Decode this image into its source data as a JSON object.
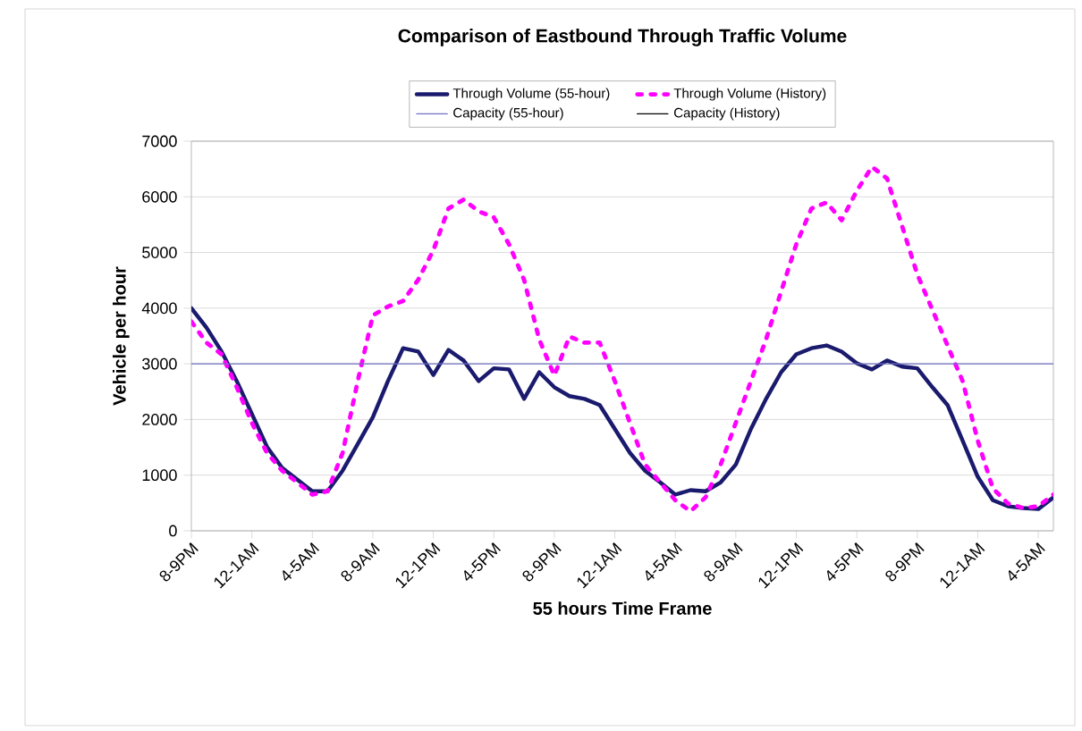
{
  "chart_data": {
    "type": "line",
    "title": "Comparison of Eastbound Through Traffic Volume",
    "xlabel": "55 hours Time Frame",
    "ylabel": "Vehicle per hour",
    "categories": [
      "8-9PM",
      null,
      null,
      null,
      "12-1AM",
      null,
      null,
      null,
      "4-5AM",
      null,
      null,
      null,
      "8-9AM",
      null,
      null,
      null,
      "12-1PM",
      null,
      null,
      null,
      "4-5PM",
      null,
      null,
      null,
      "8-9PM",
      null,
      null,
      null,
      "12-1AM",
      null,
      null,
      null,
      "4-5AM",
      null,
      null,
      null,
      "8-9AM",
      null,
      null,
      null,
      "12-1PM",
      null,
      null,
      null,
      "4-5PM",
      null,
      null,
      null,
      "8-9PM",
      null,
      null,
      null,
      "12-1AM",
      null,
      null,
      null,
      "4-5AM",
      null
    ],
    "series": [
      {
        "name": "Through Volume (55-hour)",
        "color": "#1a1a6e",
        "line_style": "solid",
        "values": [
          4000,
          3650,
          3220,
          2690,
          2100,
          1510,
          1130,
          920,
          710,
          710,
          1080,
          1560,
          2040,
          2690,
          3280,
          3220,
          2800,
          3250,
          3060,
          2690,
          2920,
          2900,
          2370,
          2850,
          2580,
          2420,
          2370,
          2260,
          1830,
          1400,
          1080,
          870,
          650,
          730,
          710,
          870,
          1190,
          1830,
          2370,
          2850,
          3170,
          3280,
          3330,
          3220,
          3010,
          2900,
          3060,
          2950,
          2920,
          2580,
          2260,
          1620,
          970,
          550,
          440,
          410,
          390,
          600
        ]
      },
      {
        "name": "Through Volume (History)",
        "color": "#ff00ff",
        "line_style": "dashed",
        "values": [
          3760,
          3380,
          3170,
          2580,
          1940,
          1400,
          1080,
          870,
          650,
          710,
          1400,
          2690,
          3870,
          4030,
          4130,
          4510,
          5040,
          5790,
          5950,
          5740,
          5630,
          5150,
          4510,
          3440,
          2790,
          3490,
          3380,
          3380,
          2690,
          1940,
          1190,
          870,
          550,
          350,
          600,
          1190,
          1940,
          2690,
          3440,
          4300,
          5150,
          5790,
          5900,
          5580,
          6110,
          6540,
          6330,
          5470,
          4610,
          3970,
          3330,
          2690,
          1620,
          760,
          490,
          410,
          440,
          650
        ]
      },
      {
        "name": "Capacity (55-hour)",
        "color": "#7070c0",
        "line_style": "solid",
        "values": [
          3000,
          3000,
          3000,
          3000,
          3000,
          3000,
          3000,
          3000,
          3000,
          3000,
          3000,
          3000,
          3000,
          3000,
          3000,
          3000,
          3000,
          3000,
          3000,
          3000,
          3000,
          3000,
          3000,
          3000,
          3000,
          3000,
          3000,
          3000,
          3000,
          3000,
          3000,
          3000,
          3000,
          3000,
          3000,
          3000,
          3000,
          3000,
          3000,
          3000,
          3000,
          3000,
          3000,
          3000,
          3000,
          3000,
          3000,
          3000,
          3000,
          3000,
          3000,
          3000,
          3000,
          3000,
          3000,
          3000,
          3000,
          3000
        ]
      },
      {
        "name": "Capacity (History)",
        "line_style": "solid",
        "values": [
          null,
          null,
          null,
          null,
          null,
          null,
          null,
          null,
          null,
          null,
          null,
          null,
          null,
          null,
          null,
          null,
          null,
          null,
          null,
          null,
          null,
          null,
          null,
          null,
          null,
          null,
          null,
          null,
          null,
          null,
          null,
          null,
          null,
          null,
          null,
          null,
          null,
          null,
          null,
          null,
          null,
          null,
          null,
          null,
          null,
          null,
          null,
          null,
          null,
          null,
          null,
          null,
          null,
          null,
          null,
          null,
          null,
          null
        ]
      }
    ],
    "ylim": [
      0,
      7000
    ],
    "yticks": [
      0,
      1000,
      2000,
      3000,
      4000,
      5000,
      6000,
      7000
    ],
    "grid": "y",
    "legend": "top",
    "marker": "none"
  }
}
